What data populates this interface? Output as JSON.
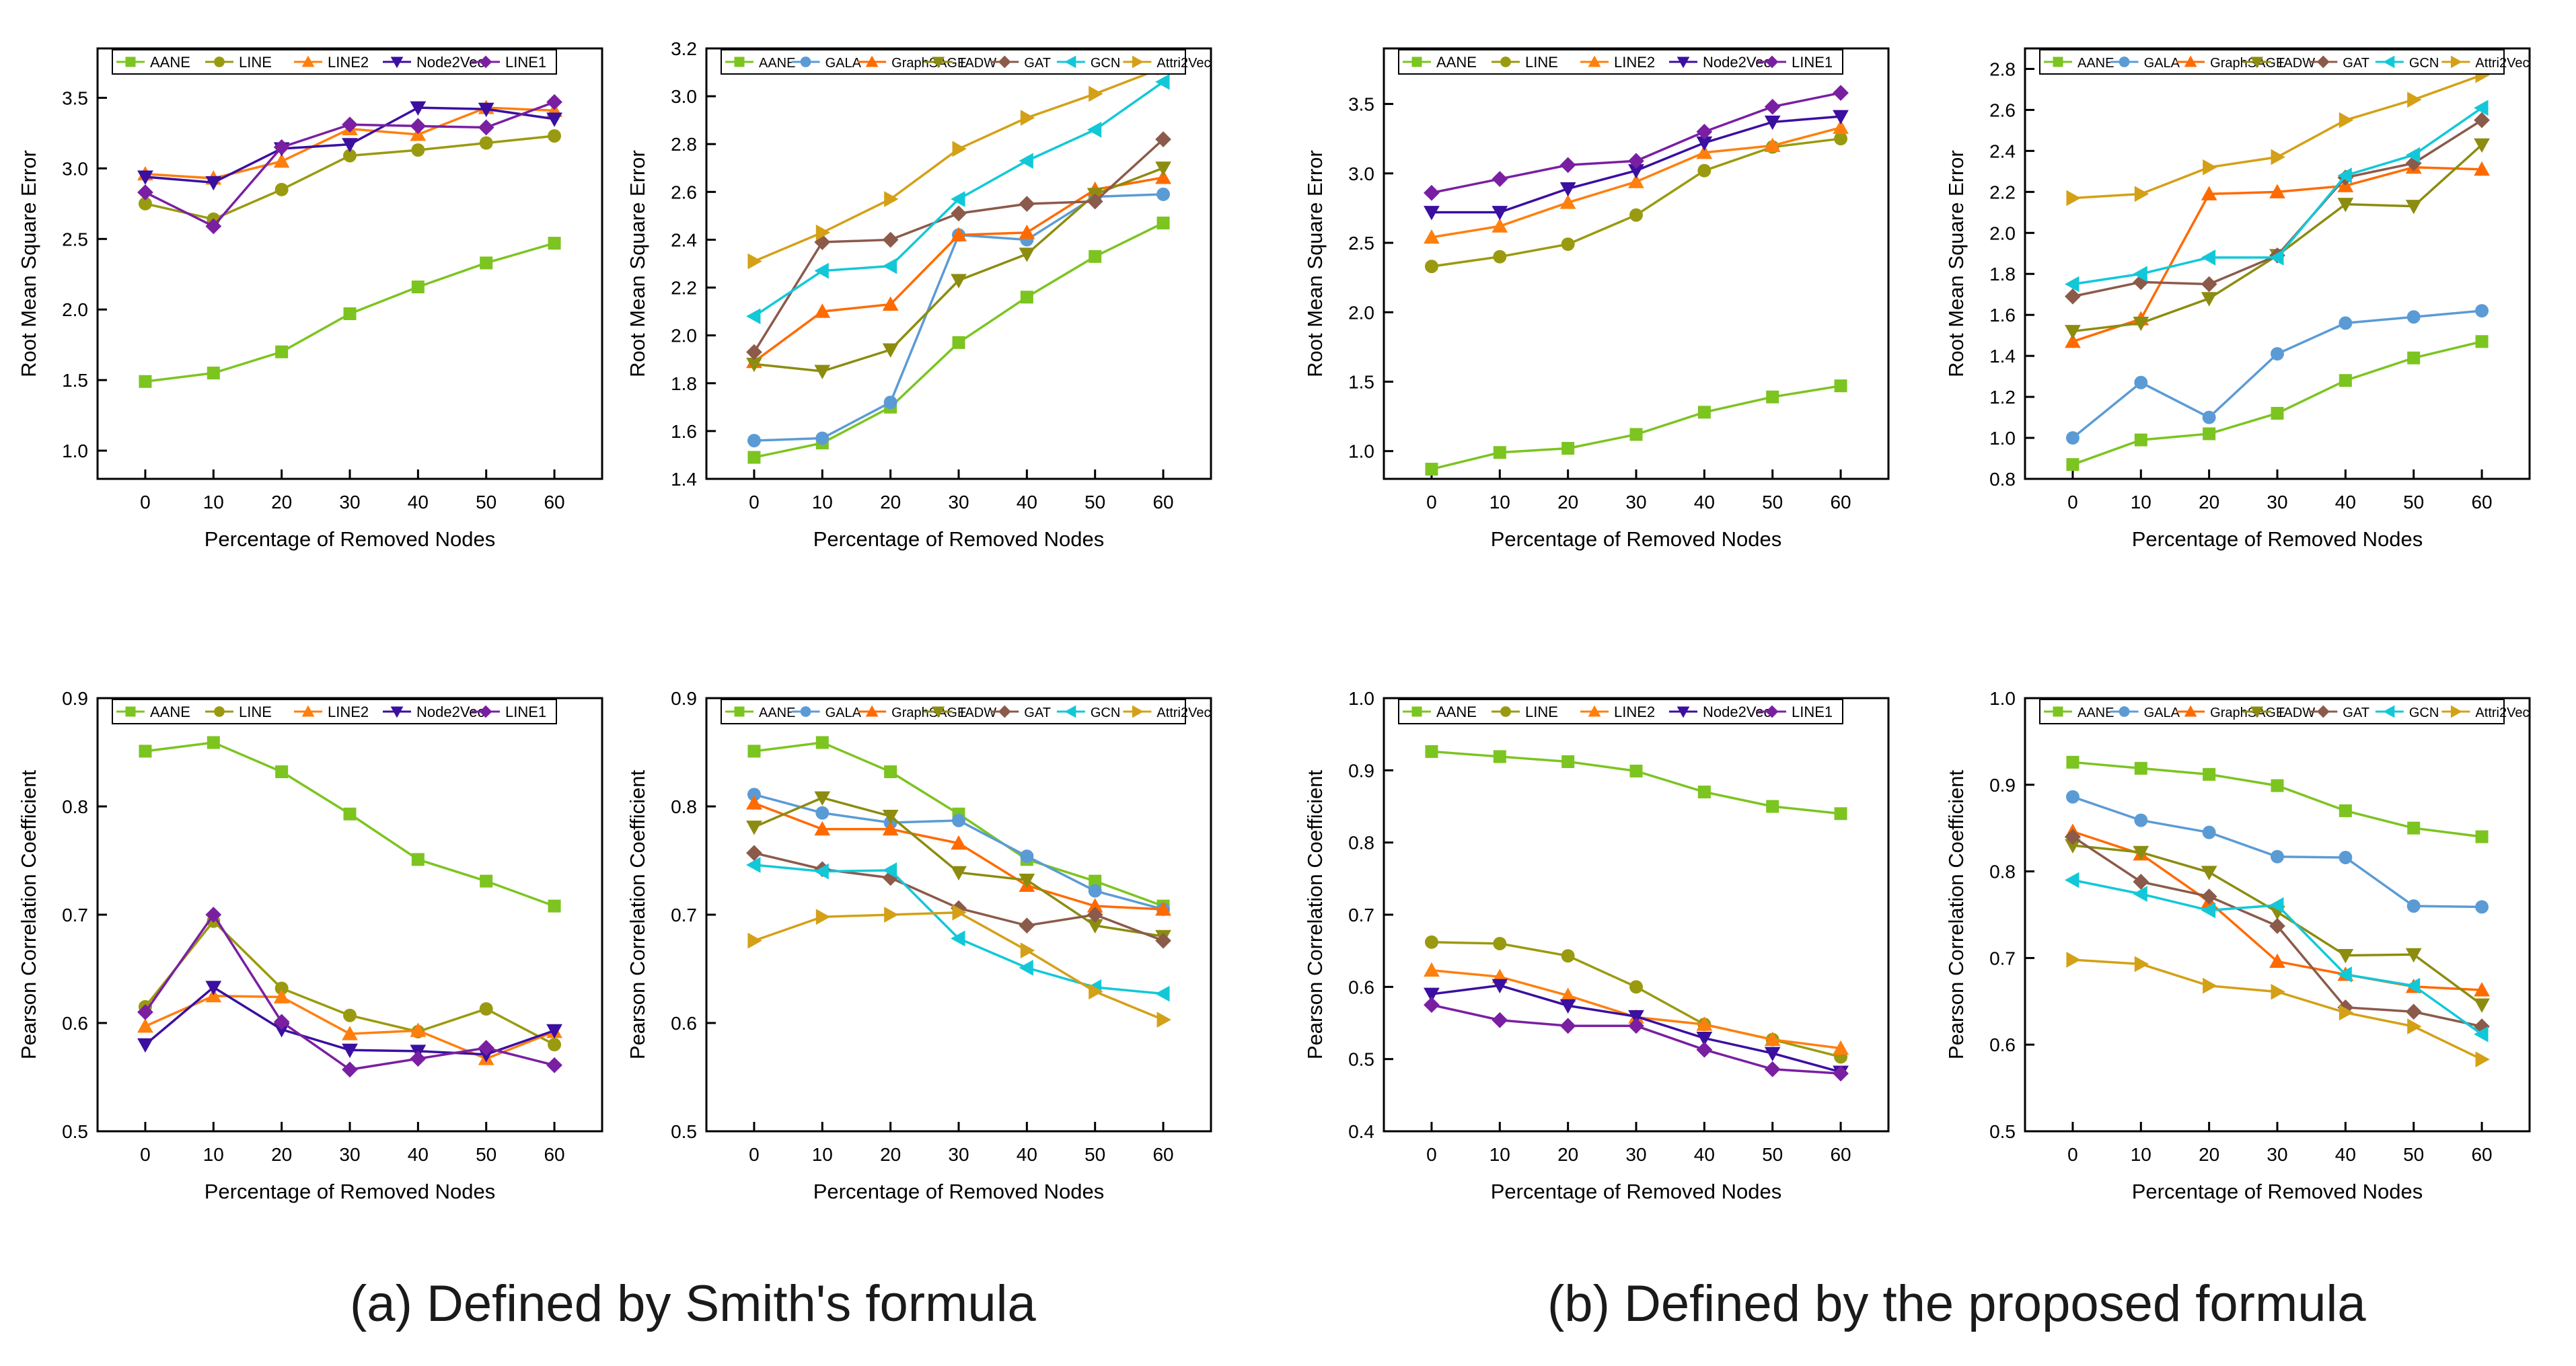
{
  "captions": {
    "a": "(a) Defined by Smith's formula",
    "b": "(b) Defined by the proposed formula"
  },
  "colors": {
    "AANE": "#7cc420",
    "GALA": "#5b9bd5",
    "LINE": "#9a9a10",
    "LINE2": "#ff7f0e",
    "GraphSAGE": "#ff6a00",
    "Node2Vec": "#3b0fa0",
    "LINE1": "#7a1fa2",
    "TADW": "#8c8c10",
    "GAT": "#8b5a4a",
    "GCN": "#12c8d8",
    "Attri2Vec": "#d4a017"
  },
  "markers": {
    "AANE": "square",
    "GALA": "circle",
    "LINE": "circle",
    "LINE2": "triangle-up",
    "GraphSAGE": "triangle-up",
    "Node2Vec": "triangle-down",
    "LINE1": "diamond",
    "TADW": "triangle-down",
    "GAT": "diamond",
    "GCN": "triangle-left",
    "Attri2Vec": "triangle-right"
  },
  "chart_data": [
    {
      "id": "a-rmse-1",
      "type": "line",
      "xlabel": "Percentage of Removed Nodes",
      "ylabel": "Root Mean Square Error",
      "x": [
        0,
        10,
        20,
        30,
        40,
        50,
        60
      ],
      "ylim": [
        0.8,
        3.85
      ],
      "yticks": [
        1.0,
        1.5,
        2.0,
        2.5,
        3.0,
        3.5
      ],
      "ytick_labels": [
        "1.0",
        "1.5",
        "2.0",
        "2.5",
        "3.0",
        "3.5"
      ],
      "series": [
        {
          "name": "AANE",
          "values": [
            1.49,
            1.55,
            1.7,
            1.97,
            2.16,
            2.33,
            2.47
          ]
        },
        {
          "name": "LINE",
          "values": [
            2.75,
            2.64,
            2.85,
            3.09,
            3.13,
            3.18,
            3.23
          ]
        },
        {
          "name": "LINE2",
          "values": [
            2.96,
            2.93,
            3.05,
            3.28,
            3.24,
            3.43,
            3.41
          ]
        },
        {
          "name": "Node2Vec",
          "values": [
            2.94,
            2.9,
            3.14,
            3.17,
            3.43,
            3.42,
            3.35
          ]
        },
        {
          "name": "LINE1",
          "values": [
            2.83,
            2.59,
            3.15,
            3.31,
            3.3,
            3.29,
            3.47
          ]
        }
      ]
    },
    {
      "id": "a-rmse-2",
      "type": "line",
      "xlabel": "Percentage of Removed Nodes",
      "ylabel": "Root Mean Square Error",
      "x": [
        0,
        10,
        20,
        30,
        40,
        50,
        60
      ],
      "ylim": [
        1.4,
        3.2
      ],
      "yticks": [
        1.4,
        1.6,
        1.8,
        2.0,
        2.2,
        2.4,
        2.6,
        2.8,
        3.0,
        3.2
      ],
      "ytick_labels": [
        "1.4",
        "1.6",
        "1.8",
        "2.0",
        "2.2",
        "2.4",
        "2.6",
        "2.8",
        "3.0",
        "3.2"
      ],
      "series": [
        {
          "name": "AANE",
          "values": [
            1.49,
            1.55,
            1.7,
            1.97,
            2.16,
            2.33,
            2.47
          ]
        },
        {
          "name": "GALA",
          "values": [
            1.56,
            1.57,
            1.72,
            2.42,
            2.4,
            2.58,
            2.59
          ]
        },
        {
          "name": "GraphSAGE",
          "values": [
            1.89,
            2.1,
            2.13,
            2.42,
            2.43,
            2.61,
            2.66
          ]
        },
        {
          "name": "TADW",
          "values": [
            1.88,
            1.85,
            1.94,
            2.23,
            2.34,
            2.59,
            2.7
          ]
        },
        {
          "name": "GAT",
          "values": [
            1.93,
            2.39,
            2.4,
            2.51,
            2.55,
            2.56,
            2.82
          ]
        },
        {
          "name": "GCN",
          "values": [
            2.08,
            2.27,
            2.29,
            2.57,
            2.73,
            2.86,
            3.06
          ]
        },
        {
          "name": "Attri2Vec",
          "values": [
            2.31,
            2.43,
            2.57,
            2.78,
            2.91,
            3.01,
            3.12
          ]
        }
      ]
    },
    {
      "id": "b-rmse-1",
      "type": "line",
      "xlabel": "Percentage of Removed Nodes",
      "ylabel": "Root Mean Square Error",
      "x": [
        0,
        10,
        20,
        30,
        40,
        50,
        60
      ],
      "ylim": [
        0.8,
        3.9
      ],
      "yticks": [
        1.0,
        1.5,
        2.0,
        2.5,
        3.0,
        3.5
      ],
      "ytick_labels": [
        "1.0",
        "1.5",
        "2.0",
        "2.5",
        "3.0",
        "3.5"
      ],
      "series": [
        {
          "name": "AANE",
          "values": [
            0.87,
            0.99,
            1.02,
            1.12,
            1.28,
            1.39,
            1.47
          ]
        },
        {
          "name": "LINE",
          "values": [
            2.33,
            2.4,
            2.49,
            2.7,
            3.02,
            3.19,
            3.25
          ]
        },
        {
          "name": "LINE2",
          "values": [
            2.54,
            2.62,
            2.79,
            2.94,
            3.15,
            3.2,
            3.33
          ]
        },
        {
          "name": "Node2Vec",
          "values": [
            2.72,
            2.72,
            2.89,
            3.02,
            3.22,
            3.37,
            3.41
          ]
        },
        {
          "name": "LINE1",
          "values": [
            2.86,
            2.96,
            3.06,
            3.09,
            3.3,
            3.48,
            3.58
          ]
        }
      ]
    },
    {
      "id": "b-rmse-2",
      "type": "line",
      "xlabel": "Percentage of Removed Nodes",
      "ylabel": "Root Mean Square Error",
      "x": [
        0,
        10,
        20,
        30,
        40,
        50,
        60
      ],
      "ylim": [
        0.8,
        2.9
      ],
      "yticks": [
        0.8,
        1.0,
        1.2,
        1.4,
        1.6,
        1.8,
        2.0,
        2.2,
        2.4,
        2.6,
        2.8
      ],
      "ytick_labels": [
        "0.8",
        "1.0",
        "1.2",
        "1.4",
        "1.6",
        "1.8",
        "2.0",
        "2.2",
        "2.4",
        "2.6",
        "2.8"
      ],
      "series": [
        {
          "name": "AANE",
          "values": [
            0.87,
            0.99,
            1.02,
            1.12,
            1.28,
            1.39,
            1.47
          ]
        },
        {
          "name": "GALA",
          "values": [
            1.0,
            1.27,
            1.1,
            1.41,
            1.56,
            1.59,
            1.62
          ]
        },
        {
          "name": "GraphSAGE",
          "values": [
            1.47,
            1.58,
            2.19,
            2.2,
            2.23,
            2.32,
            2.31
          ]
        },
        {
          "name": "TADW",
          "values": [
            1.52,
            1.56,
            1.68,
            1.89,
            2.14,
            2.13,
            2.43
          ]
        },
        {
          "name": "GAT",
          "values": [
            1.69,
            1.76,
            1.75,
            1.89,
            2.27,
            2.34,
            2.55
          ]
        },
        {
          "name": "GCN",
          "values": [
            1.75,
            1.8,
            1.88,
            1.88,
            2.28,
            2.38,
            2.61
          ]
        },
        {
          "name": "Attri2Vec",
          "values": [
            2.17,
            2.19,
            2.32,
            2.37,
            2.55,
            2.65,
            2.77
          ]
        }
      ]
    },
    {
      "id": "a-pcc-1",
      "type": "line",
      "xlabel": "Percentage of Removed Nodes",
      "ylabel": "Pearson Correlation Coefficient",
      "x": [
        0,
        10,
        20,
        30,
        40,
        50,
        60
      ],
      "ylim": [
        0.5,
        0.9
      ],
      "yticks": [
        0.5,
        0.6,
        0.7,
        0.8,
        0.9
      ],
      "ytick_labels": [
        "0.5",
        "0.6",
        "0.7",
        "0.8",
        "0.9"
      ],
      "series": [
        {
          "name": "AANE",
          "values": [
            0.851,
            0.859,
            0.832,
            0.793,
            0.751,
            0.731,
            0.708
          ]
        },
        {
          "name": "LINE",
          "values": [
            0.615,
            0.694,
            0.632,
            0.607,
            0.592,
            0.613,
            0.58
          ]
        },
        {
          "name": "LINE2",
          "values": [
            0.597,
            0.625,
            0.624,
            0.59,
            0.593,
            0.567,
            0.592
          ]
        },
        {
          "name": "Node2Vec",
          "values": [
            0.58,
            0.633,
            0.594,
            0.575,
            0.574,
            0.571,
            0.593
          ]
        },
        {
          "name": "LINE1",
          "values": [
            0.61,
            0.7,
            0.601,
            0.557,
            0.567,
            0.577,
            0.561
          ]
        }
      ]
    },
    {
      "id": "a-pcc-2",
      "type": "line",
      "xlabel": "Percentage of Removed Nodes",
      "ylabel": "Pearson Correlation Coefficient",
      "x": [
        0,
        10,
        20,
        30,
        40,
        50,
        60
      ],
      "ylim": [
        0.5,
        0.9
      ],
      "yticks": [
        0.5,
        0.6,
        0.7,
        0.8,
        0.9
      ],
      "ytick_labels": [
        "0.5",
        "0.6",
        "0.7",
        "0.8",
        "0.9"
      ],
      "series": [
        {
          "name": "AANE",
          "values": [
            0.851,
            0.859,
            0.832,
            0.793,
            0.751,
            0.731,
            0.708
          ]
        },
        {
          "name": "GALA",
          "values": [
            0.811,
            0.794,
            0.785,
            0.787,
            0.754,
            0.722,
            0.705
          ]
        },
        {
          "name": "GraphSAGE",
          "values": [
            0.803,
            0.779,
            0.779,
            0.766,
            0.727,
            0.708,
            0.705
          ]
        },
        {
          "name": "TADW",
          "values": [
            0.781,
            0.808,
            0.791,
            0.739,
            0.732,
            0.69,
            0.68
          ]
        },
        {
          "name": "GAT",
          "values": [
            0.757,
            0.742,
            0.734,
            0.706,
            0.69,
            0.7,
            0.676
          ]
        },
        {
          "name": "GCN",
          "values": [
            0.746,
            0.74,
            0.741,
            0.678,
            0.651,
            0.633,
            0.627
          ]
        },
        {
          "name": "Attri2Vec",
          "values": [
            0.676,
            0.698,
            0.7,
            0.702,
            0.667,
            0.629,
            0.603
          ]
        }
      ]
    },
    {
      "id": "b-pcc-1",
      "type": "line",
      "xlabel": "Percentage of Removed Nodes",
      "ylabel": "Pearson Correlation Coefficient",
      "x": [
        0,
        10,
        20,
        30,
        40,
        50,
        60
      ],
      "ylim": [
        0.4,
        1.0
      ],
      "yticks": [
        0.4,
        0.5,
        0.6,
        0.7,
        0.8,
        0.9,
        1.0
      ],
      "ytick_labels": [
        "0.4",
        "0.5",
        "0.6",
        "0.7",
        "0.8",
        "0.9",
        "1.0"
      ],
      "series": [
        {
          "name": "AANE",
          "values": [
            0.926,
            0.919,
            0.912,
            0.899,
            0.87,
            0.85,
            0.84
          ]
        },
        {
          "name": "LINE",
          "values": [
            0.662,
            0.66,
            0.643,
            0.6,
            0.548,
            0.527,
            0.503
          ]
        },
        {
          "name": "LINE2",
          "values": [
            0.623,
            0.614,
            0.588,
            0.558,
            0.548,
            0.527,
            0.515
          ]
        },
        {
          "name": "Node2Vec",
          "values": [
            0.59,
            0.602,
            0.574,
            0.559,
            0.529,
            0.508,
            0.482
          ]
        },
        {
          "name": "LINE1",
          "values": [
            0.575,
            0.554,
            0.546,
            0.546,
            0.513,
            0.486,
            0.48
          ]
        }
      ]
    },
    {
      "id": "b-pcc-2",
      "type": "line",
      "xlabel": "Percentage of Removed Nodes",
      "ylabel": "Pearson Correlation Coefficient",
      "x": [
        0,
        10,
        20,
        30,
        40,
        50,
        60
      ],
      "ylim": [
        0.5,
        1.0
      ],
      "yticks": [
        0.5,
        0.6,
        0.7,
        0.8,
        0.9,
        1.0
      ],
      "ytick_labels": [
        "0.5",
        "0.6",
        "0.7",
        "0.8",
        "0.9",
        "1.0"
      ],
      "series": [
        {
          "name": "AANE",
          "values": [
            0.926,
            0.919,
            0.912,
            0.899,
            0.87,
            0.85,
            0.84
          ]
        },
        {
          "name": "GALA",
          "values": [
            0.886,
            0.859,
            0.845,
            0.817,
            0.816,
            0.76,
            0.759
          ]
        },
        {
          "name": "GraphSAGE",
          "values": [
            0.846,
            0.82,
            0.765,
            0.696,
            0.681,
            0.667,
            0.663
          ]
        },
        {
          "name": "TADW",
          "values": [
            0.83,
            0.822,
            0.799,
            0.753,
            0.703,
            0.704,
            0.646
          ]
        },
        {
          "name": "GAT",
          "values": [
            0.84,
            0.788,
            0.771,
            0.737,
            0.643,
            0.638,
            0.621
          ]
        },
        {
          "name": "GCN",
          "values": [
            0.79,
            0.774,
            0.755,
            0.761,
            0.681,
            0.668,
            0.612
          ]
        },
        {
          "name": "Attri2Vec",
          "values": [
            0.698,
            0.693,
            0.668,
            0.661,
            0.637,
            0.621,
            0.583
          ]
        }
      ]
    }
  ]
}
